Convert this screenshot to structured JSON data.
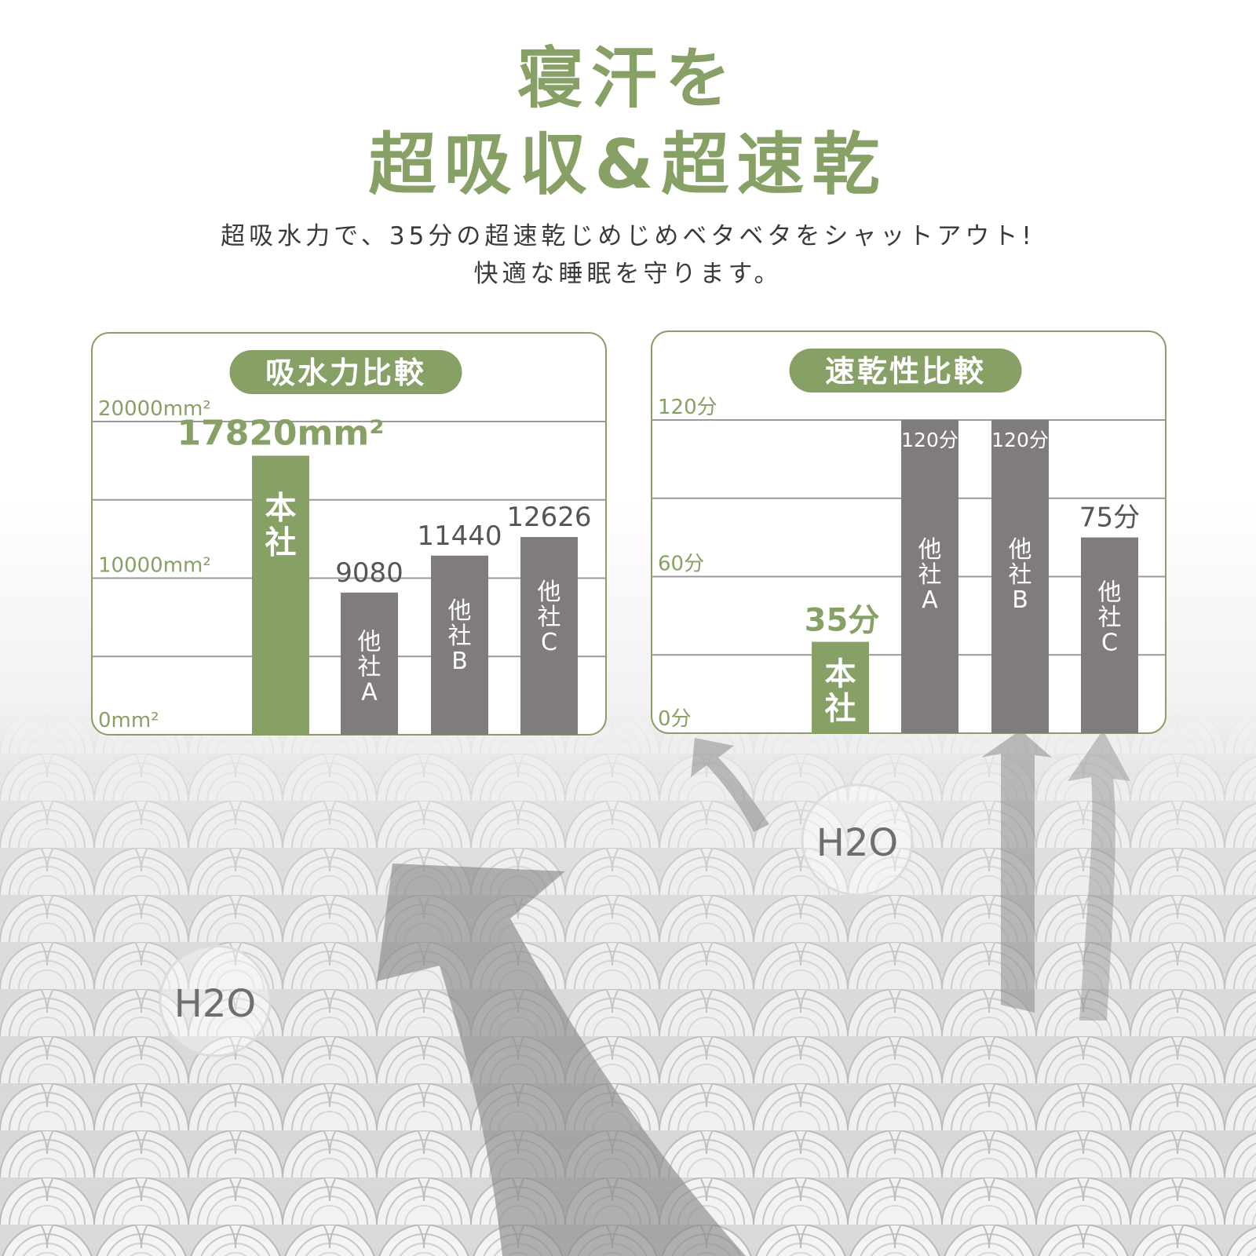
{
  "headline": {
    "line1": "寝汗を",
    "line2": "超吸収&超速乾"
  },
  "subtitle": {
    "line1": "超吸水力で、35分の超速乾じめじめベタベタをシャットアウト!",
    "line2": "快適な睡眠を守ります。"
  },
  "colors": {
    "accent": "#87a065",
    "bar_ours": "#87a065",
    "bar_other": "#807c7d",
    "grid": "#9a9a9a"
  },
  "bubbles": [
    "H2O",
    "H2O"
  ],
  "chart_data": [
    {
      "type": "bar",
      "title": "吸水力比較",
      "unit": "mm²",
      "ylim": [
        0,
        20000
      ],
      "yticks": [
        {
          "value": 0,
          "label": "0mm²"
        },
        {
          "value": 10000,
          "label": "10000mm²"
        },
        {
          "value": 20000,
          "label": "20000mm²"
        }
      ],
      "grid": true,
      "categories": [
        "本社",
        "他社A",
        "他社B",
        "他社C"
      ],
      "values": [
        17820,
        9080,
        11440,
        12626
      ],
      "value_labels": [
        "17820mm²",
        "9080",
        "11440",
        "12626"
      ],
      "highlight_index": 0
    },
    {
      "type": "bar",
      "title": "速乾性比較",
      "unit": "分",
      "ylim": [
        0,
        120
      ],
      "yticks": [
        {
          "value": 0,
          "label": "0分"
        },
        {
          "value": 60,
          "label": "60分"
        },
        {
          "value": 120,
          "label": "120分"
        }
      ],
      "grid": true,
      "categories": [
        "本社",
        "他社A",
        "他社B",
        "他社C"
      ],
      "values": [
        35,
        120,
        120,
        75
      ],
      "value_labels": [
        "35分",
        "120分",
        "120分",
        "75分"
      ],
      "highlight_index": 0
    }
  ]
}
